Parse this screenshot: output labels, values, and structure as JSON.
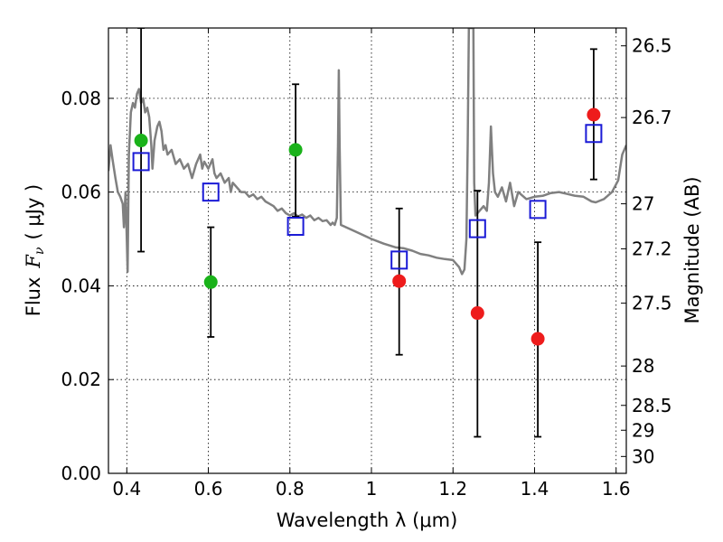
{
  "chart_data": {
    "type": "scatter",
    "xlabel": "Wavelength  λ (μm)",
    "ylabel_prefix": "Flux",
    "ylabel_var": "F",
    "ylabel_sub": "ν",
    "ylabel_suffix": "( μJy )",
    "y2label": "Magnitude (AB)",
    "xlim": [
      0.355,
      1.625
    ],
    "ylim": [
      0.0,
      0.095
    ],
    "grid": true,
    "x_ticks": [
      {
        "value": 0.4,
        "label": "0.4"
      },
      {
        "value": 0.6,
        "label": "0.6"
      },
      {
        "value": 0.8,
        "label": "0.8"
      },
      {
        "value": 1.0,
        "label": "1"
      },
      {
        "value": 1.2,
        "label": "1.2"
      },
      {
        "value": 1.4,
        "label": "1.4"
      },
      {
        "value": 1.6,
        "label": "1.6"
      }
    ],
    "y_ticks": [
      {
        "value": 0.0,
        "label": "0.00"
      },
      {
        "value": 0.02,
        "label": "0.02"
      },
      {
        "value": 0.04,
        "label": "0.04"
      },
      {
        "value": 0.06,
        "label": "0.06"
      },
      {
        "value": 0.08,
        "label": "0.08"
      }
    ],
    "y2_ticks": [
      {
        "label": "26.5",
        "flux": 0.0912
      },
      {
        "label": "26.7",
        "flux": 0.0759
      },
      {
        "label": "27",
        "flux": 0.0575
      },
      {
        "label": "27.2",
        "flux": 0.0479
      },
      {
        "label": "27.5",
        "flux": 0.0363
      },
      {
        "label": "28",
        "flux": 0.0229
      },
      {
        "label": "28.5",
        "flux": 0.0145
      },
      {
        "label": "29",
        "flux": 0.0092
      },
      {
        "label": "30",
        "flux": 0.0036
      }
    ],
    "colors": {
      "spectrum": "#808080",
      "green": "#1ab21a",
      "red": "#ee1c1c",
      "model": "#1a1ad6",
      "errorbar": "#000000",
      "grid": "#000000"
    },
    "series": [
      {
        "name": "Detections (green)",
        "marker": "circle",
        "color": "green",
        "points": [
          {
            "x": 0.435,
            "y": 0.071
          },
          {
            "x": 0.606,
            "y": 0.0408
          },
          {
            "x": 0.814,
            "y": 0.069
          }
        ]
      },
      {
        "name": "Detections (red)",
        "marker": "circle",
        "color": "red",
        "points": [
          {
            "x": 1.068,
            "y": 0.041
          },
          {
            "x": 1.26,
            "y": 0.0342
          },
          {
            "x": 1.408,
            "y": 0.0287
          },
          {
            "x": 1.545,
            "y": 0.0765
          }
        ]
      },
      {
        "name": "Model photometry",
        "marker": "open-square",
        "color": "model",
        "points": [
          {
            "x": 0.435,
            "y": 0.0665
          },
          {
            "x": 0.606,
            "y": 0.06
          },
          {
            "x": 0.814,
            "y": 0.0527
          },
          {
            "x": 1.068,
            "y": 0.0455
          },
          {
            "x": 1.26,
            "y": 0.0522
          },
          {
            "x": 1.408,
            "y": 0.0563
          },
          {
            "x": 1.545,
            "y": 0.0725
          }
        ]
      }
    ],
    "error_bars": [
      {
        "x": 0.435,
        "low": 0.0473,
        "high": 0.095
      },
      {
        "x": 0.606,
        "low": 0.0291,
        "high": 0.0525
      },
      {
        "x": 0.814,
        "low": 0.0548,
        "high": 0.083
      },
      {
        "x": 1.068,
        "low": 0.0253,
        "high": 0.0565
      },
      {
        "x": 1.26,
        "low": 0.0078,
        "high": 0.0603
      },
      {
        "x": 1.408,
        "low": 0.0078,
        "high": 0.0493
      },
      {
        "x": 1.545,
        "low": 0.0627,
        "high": 0.0905
      }
    ],
    "spectrum": [
      [
        0.355,
        0.0645
      ],
      [
        0.36,
        0.07
      ],
      [
        0.365,
        0.067
      ],
      [
        0.372,
        0.063
      ],
      [
        0.378,
        0.06
      ],
      [
        0.384,
        0.059
      ],
      [
        0.39,
        0.0575
      ],
      [
        0.393,
        0.0525
      ],
      [
        0.397,
        0.06
      ],
      [
        0.4,
        0.05
      ],
      [
        0.402,
        0.043
      ],
      [
        0.405,
        0.068
      ],
      [
        0.41,
        0.077
      ],
      [
        0.415,
        0.079
      ],
      [
        0.42,
        0.078
      ],
      [
        0.425,
        0.081
      ],
      [
        0.43,
        0.082
      ],
      [
        0.435,
        0.079
      ],
      [
        0.44,
        0.08
      ],
      [
        0.445,
        0.077
      ],
      [
        0.45,
        0.078
      ],
      [
        0.455,
        0.076
      ],
      [
        0.46,
        0.07
      ],
      [
        0.463,
        0.065
      ],
      [
        0.468,
        0.071
      ],
      [
        0.475,
        0.074
      ],
      [
        0.48,
        0.075
      ],
      [
        0.485,
        0.073
      ],
      [
        0.49,
        0.069
      ],
      [
        0.495,
        0.07
      ],
      [
        0.5,
        0.068
      ],
      [
        0.51,
        0.069
      ],
      [
        0.52,
        0.066
      ],
      [
        0.53,
        0.067
      ],
      [
        0.54,
        0.065
      ],
      [
        0.55,
        0.066
      ],
      [
        0.56,
        0.063
      ],
      [
        0.57,
        0.066
      ],
      [
        0.58,
        0.068
      ],
      [
        0.585,
        0.065
      ],
      [
        0.59,
        0.0665
      ],
      [
        0.6,
        0.065
      ],
      [
        0.61,
        0.067
      ],
      [
        0.615,
        0.064
      ],
      [
        0.62,
        0.063
      ],
      [
        0.63,
        0.064
      ],
      [
        0.64,
        0.062
      ],
      [
        0.65,
        0.063
      ],
      [
        0.655,
        0.06
      ],
      [
        0.66,
        0.062
      ],
      [
        0.67,
        0.061
      ],
      [
        0.68,
        0.06
      ],
      [
        0.69,
        0.06
      ],
      [
        0.7,
        0.059
      ],
      [
        0.71,
        0.0595
      ],
      [
        0.72,
        0.0585
      ],
      [
        0.73,
        0.059
      ],
      [
        0.74,
        0.058
      ],
      [
        0.75,
        0.0575
      ],
      [
        0.76,
        0.057
      ],
      [
        0.77,
        0.056
      ],
      [
        0.78,
        0.0565
      ],
      [
        0.79,
        0.0555
      ],
      [
        0.8,
        0.055
      ],
      [
        0.81,
        0.0555
      ],
      [
        0.82,
        0.0548
      ],
      [
        0.83,
        0.0552
      ],
      [
        0.84,
        0.0545
      ],
      [
        0.85,
        0.055
      ],
      [
        0.86,
        0.054
      ],
      [
        0.87,
        0.0545
      ],
      [
        0.88,
        0.0538
      ],
      [
        0.89,
        0.054
      ],
      [
        0.9,
        0.053
      ],
      [
        0.905,
        0.0535
      ],
      [
        0.91,
        0.053
      ],
      [
        0.915,
        0.0545
      ],
      [
        0.918,
        0.07
      ],
      [
        0.92,
        0.086
      ],
      [
        0.922,
        0.07
      ],
      [
        0.925,
        0.053
      ],
      [
        0.93,
        0.0528
      ],
      [
        0.95,
        0.052
      ],
      [
        0.97,
        0.0512
      ],
      [
        1.0,
        0.05
      ],
      [
        1.03,
        0.049
      ],
      [
        1.06,
        0.0482
      ],
      [
        1.08,
        0.048
      ],
      [
        1.1,
        0.0475
      ],
      [
        1.12,
        0.0468
      ],
      [
        1.14,
        0.0465
      ],
      [
        1.16,
        0.046
      ],
      [
        1.18,
        0.0457
      ],
      [
        1.2,
        0.0455
      ],
      [
        1.215,
        0.044
      ],
      [
        1.222,
        0.0425
      ],
      [
        1.228,
        0.0435
      ],
      [
        1.233,
        0.05
      ],
      [
        1.236,
        0.07
      ],
      [
        1.239,
        0.095
      ],
      [
        1.25,
        0.095
      ],
      [
        1.252,
        0.062
      ],
      [
        1.255,
        0.055
      ],
      [
        1.265,
        0.056
      ],
      [
        1.275,
        0.057
      ],
      [
        1.283,
        0.056
      ],
      [
        1.288,
        0.062
      ],
      [
        1.293,
        0.074
      ],
      [
        1.298,
        0.064
      ],
      [
        1.303,
        0.06
      ],
      [
        1.31,
        0.059
      ],
      [
        1.32,
        0.061
      ],
      [
        1.33,
        0.058
      ],
      [
        1.34,
        0.062
      ],
      [
        1.35,
        0.057
      ],
      [
        1.36,
        0.06
      ],
      [
        1.38,
        0.0585
      ],
      [
        1.4,
        0.059
      ],
      [
        1.42,
        0.0592
      ],
      [
        1.44,
        0.0598
      ],
      [
        1.46,
        0.06
      ],
      [
        1.48,
        0.0596
      ],
      [
        1.5,
        0.0592
      ],
      [
        1.52,
        0.059
      ],
      [
        1.54,
        0.058
      ],
      [
        1.55,
        0.0578
      ],
      [
        1.57,
        0.0585
      ],
      [
        1.59,
        0.06
      ],
      [
        1.605,
        0.0625
      ],
      [
        1.615,
        0.068
      ],
      [
        1.625,
        0.07
      ]
    ]
  }
}
